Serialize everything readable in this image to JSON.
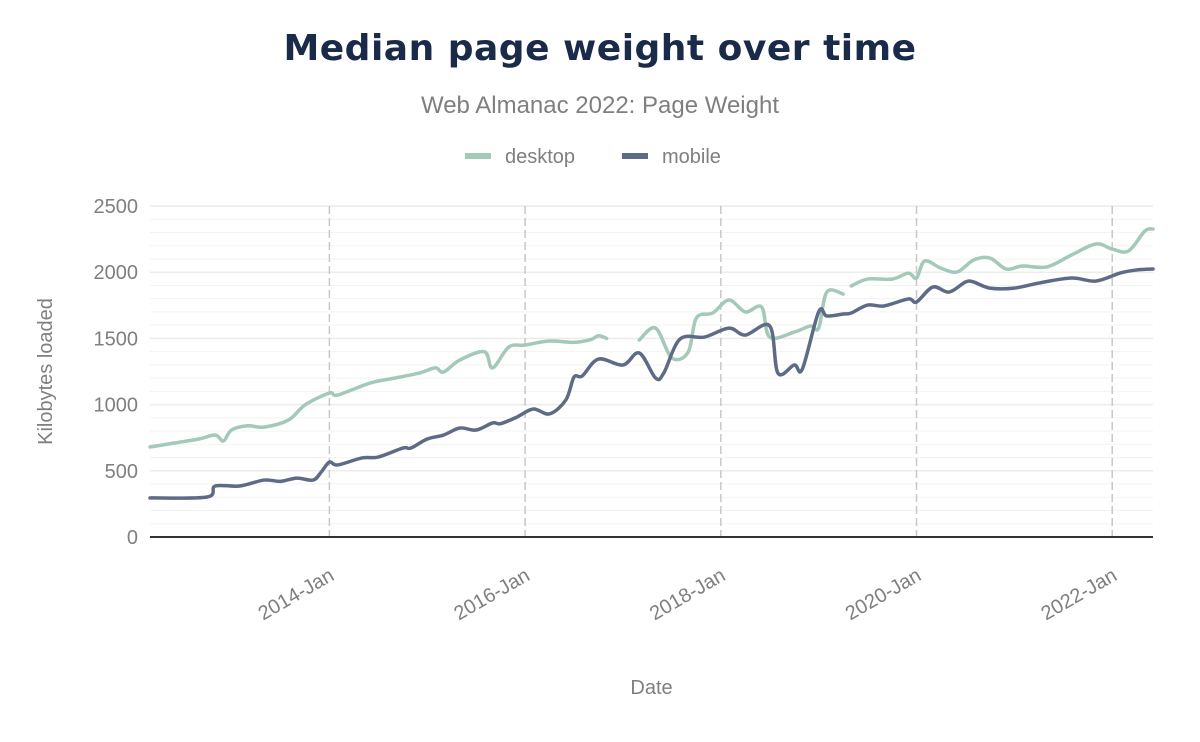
{
  "chart_data": {
    "type": "line",
    "title": "Median page weight over time",
    "subtitle": "Web Almanac 2022: Page Weight",
    "xlabel": "Date",
    "ylabel": "Kilobytes loaded",
    "ylim": [
      0,
      2500
    ],
    "xlim": [
      "2012-03",
      "2022-06"
    ],
    "yticks": [
      0,
      500,
      1000,
      1500,
      2000,
      2500
    ],
    "xticks": [
      "2014-Jan",
      "2016-Jan",
      "2018-Jan",
      "2020-Jan",
      "2022-Jan"
    ],
    "grid": true,
    "legend": "top-center",
    "series": [
      {
        "name": "desktop",
        "color": "#a3c9b8",
        "points": [
          [
            "2012-03",
            680
          ],
          [
            "2012-06",
            710
          ],
          [
            "2012-09",
            740
          ],
          [
            "2012-11",
            770
          ],
          [
            "2012-12",
            725
          ],
          [
            "2013-01",
            808
          ],
          [
            "2013-03",
            840
          ],
          [
            "2013-05",
            830
          ],
          [
            "2013-08",
            884
          ],
          [
            "2013-10",
            997
          ],
          [
            "2014-01",
            1087
          ],
          [
            "2014-02",
            1072
          ],
          [
            "2014-06",
            1163
          ],
          [
            "2014-09",
            1200
          ],
          [
            "2014-12",
            1238
          ],
          [
            "2015-02",
            1277
          ],
          [
            "2015-03",
            1246
          ],
          [
            "2015-05",
            1337
          ],
          [
            "2015-08",
            1400
          ],
          [
            "2015-09",
            1277
          ],
          [
            "2015-11",
            1435
          ],
          [
            "2016-01",
            1450
          ],
          [
            "2016-04",
            1480
          ],
          [
            "2016-07",
            1470
          ],
          [
            "2016-09",
            1490
          ],
          [
            "2016-10",
            1520
          ],
          [
            "2016-11",
            1500
          ],
          [
            "2017-01",
            null
          ],
          [
            "2017-03",
            1488
          ],
          [
            "2017-05",
            1578
          ],
          [
            "2017-07",
            1352
          ],
          [
            "2017-09",
            1397
          ],
          [
            "2017-10",
            1654
          ],
          [
            "2017-12",
            1692
          ],
          [
            "2018-02",
            1790
          ],
          [
            "2018-04",
            1700
          ],
          [
            "2018-06",
            1737
          ],
          [
            "2018-07",
            1510
          ],
          [
            "2018-10",
            1548
          ],
          [
            "2018-12",
            1594
          ],
          [
            "2019-01",
            1578
          ],
          [
            "2019-02",
            1850
          ],
          [
            "2019-04",
            1835
          ],
          [
            "2019-04",
            null
          ],
          [
            "2019-05",
            1896
          ],
          [
            "2019-07",
            1948
          ],
          [
            "2019-10",
            1948
          ],
          [
            "2019-12",
            1993
          ],
          [
            "2020-01",
            1956
          ],
          [
            "2020-02",
            2085
          ],
          [
            "2020-04",
            2030
          ],
          [
            "2020-06",
            2002
          ],
          [
            "2020-08",
            2092
          ],
          [
            "2020-10",
            2107
          ],
          [
            "2020-12",
            2024
          ],
          [
            "2021-02",
            2047
          ],
          [
            "2021-05",
            2040
          ],
          [
            "2021-08",
            2130
          ],
          [
            "2021-11",
            2213
          ],
          [
            "2022-01",
            2175
          ],
          [
            "2022-03",
            2160
          ],
          [
            "2022-05",
            2311
          ],
          [
            "2022-06",
            2326
          ]
        ]
      },
      {
        "name": "mobile",
        "color": "#5e6b87",
        "points": [
          [
            "2012-03",
            295
          ],
          [
            "2012-10",
            302
          ],
          [
            "2012-11",
            385
          ],
          [
            "2013-02",
            385
          ],
          [
            "2013-05",
            430
          ],
          [
            "2013-07",
            420
          ],
          [
            "2013-09",
            445
          ],
          [
            "2013-11",
            430
          ],
          [
            "2013-12",
            491
          ],
          [
            "2014-01",
            566
          ],
          [
            "2014-02",
            544
          ],
          [
            "2014-05",
            597
          ],
          [
            "2014-07",
            604
          ],
          [
            "2014-10",
            672
          ],
          [
            "2014-11",
            672
          ],
          [
            "2015-01",
            740
          ],
          [
            "2015-03",
            770
          ],
          [
            "2015-05",
            823
          ],
          [
            "2015-07",
            808
          ],
          [
            "2015-09",
            861
          ],
          [
            "2015-10",
            856
          ],
          [
            "2015-12",
            906
          ],
          [
            "2016-02",
            967
          ],
          [
            "2016-04",
            930
          ],
          [
            "2016-06",
            1035
          ],
          [
            "2016-07",
            1208
          ],
          [
            "2016-08",
            1216
          ],
          [
            "2016-10",
            1344
          ],
          [
            "2017-01",
            1299
          ],
          [
            "2017-03",
            1390
          ],
          [
            "2017-05",
            1201
          ],
          [
            "2017-06",
            1238
          ],
          [
            "2017-08",
            1495
          ],
          [
            "2017-11",
            1510
          ],
          [
            "2018-02",
            1578
          ],
          [
            "2018-04",
            1525
          ],
          [
            "2018-07",
            1594
          ],
          [
            "2018-08",
            1238
          ],
          [
            "2018-10",
            1299
          ],
          [
            "2018-11",
            1269
          ],
          [
            "2019-01",
            1700
          ],
          [
            "2019-02",
            1669
          ],
          [
            "2019-04",
            1684
          ],
          [
            "2019-05",
            1692
          ],
          [
            "2019-07",
            1752
          ],
          [
            "2019-09",
            1745
          ],
          [
            "2019-12",
            1798
          ],
          [
            "2020-01",
            1775
          ],
          [
            "2020-03",
            1888
          ],
          [
            "2020-05",
            1850
          ],
          [
            "2020-07",
            1926
          ],
          [
            "2020-08",
            1926
          ],
          [
            "2020-10",
            1880
          ],
          [
            "2021-01",
            1880
          ],
          [
            "2021-04",
            1918
          ],
          [
            "2021-08",
            1956
          ],
          [
            "2021-11",
            1933
          ],
          [
            "2022-02",
            1994
          ],
          [
            "2022-04",
            2017
          ],
          [
            "2022-06",
            2024
          ]
        ]
      }
    ]
  }
}
